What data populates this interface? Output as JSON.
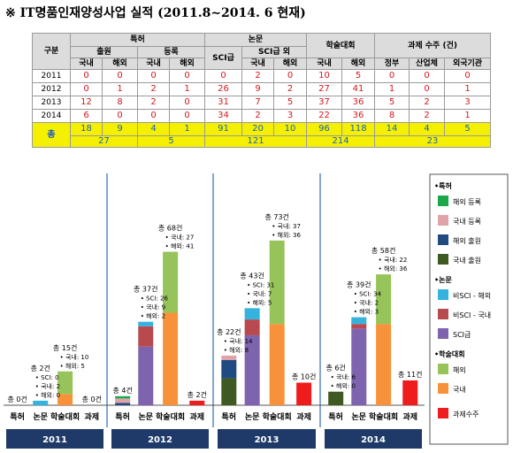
{
  "title": "※ IT명품인재양성사업 실적 (2011.8~2014. 6 현재)",
  "table": {
    "corner": "구분",
    "groups": [
      "특허",
      "논문",
      "학술대회",
      "과제 수주 (건)"
    ],
    "subgroups": [
      "출원",
      "등록",
      "SCI급",
      "SCI급 외"
    ],
    "cols": [
      "국내",
      "해외",
      "국내",
      "해외",
      "SCI급",
      "국내",
      "해외",
      "국내",
      "해외",
      "정부",
      "산업체",
      "외국기관"
    ],
    "rows": [
      {
        "year": "2011",
        "values": [
          "0",
          "0",
          "0",
          "0",
          "0",
          "2",
          "0",
          "10",
          "5",
          "0",
          "0",
          "0"
        ]
      },
      {
        "year": "2012",
        "values": [
          "0",
          "1",
          "2",
          "1",
          "26",
          "9",
          "2",
          "27",
          "41",
          "1",
          "0",
          "1"
        ]
      },
      {
        "year": "2013",
        "values": [
          "12",
          "8",
          "2",
          "0",
          "31",
          "7",
          "5",
          "37",
          "36",
          "5",
          "2",
          "3"
        ]
      },
      {
        "year": "2014",
        "values": [
          "6",
          "0",
          "0",
          "0",
          "34",
          "2",
          "3",
          "22",
          "36",
          "8",
          "2",
          "1"
        ]
      }
    ],
    "total_label": "총",
    "totals": [
      "18",
      "9",
      "4",
      "1",
      "91",
      "20",
      "10",
      "96",
      "118",
      "14",
      "4",
      "5"
    ],
    "group_totals": [
      "27",
      "5",
      "121",
      "214",
      "23"
    ]
  },
  "chart_data": {
    "type": "bar",
    "stacked": true,
    "years": [
      "2011",
      "2012",
      "2013",
      "2014"
    ],
    "categories": [
      "특허",
      "논문",
      "학술대회",
      "과제"
    ],
    "groups": [
      {
        "year": "2011",
        "patent": {
          "total": "총 0건",
          "segments": [
            0,
            0,
            0,
            0
          ]
        },
        "paper": {
          "total": "총 2건",
          "segments": [
            0,
            0,
            2
          ],
          "notes": [
            "• SCI: 0",
            "• 국내: 2",
            "• 해외: 0"
          ]
        },
        "conf": {
          "total": "총 15건",
          "segments": [
            5,
            10
          ],
          "notes": [
            "• 국내: 10",
            "• 해외: 5"
          ]
        },
        "project": {
          "total": "총 0건",
          "value": 0
        }
      },
      {
        "year": "2012",
        "patent": {
          "total": "총 4건",
          "segments": [
            0,
            1,
            2,
            1
          ]
        },
        "paper": {
          "total": "총 37건",
          "segments": [
            26,
            9,
            2
          ],
          "notes": [
            "• SCI: 26",
            "• 국내: 9",
            "• 해외: 2"
          ]
        },
        "conf": {
          "total": "총 68건",
          "segments": [
            41,
            27
          ],
          "notes": [
            "• 국내: 27",
            "• 해외: 41"
          ]
        },
        "project": {
          "total": "총 2건",
          "value": 2
        }
      },
      {
        "year": "2013",
        "patent": {
          "total": "총 22건",
          "segments": [
            12,
            8,
            2,
            0
          ],
          "notes": [
            "• 국내: 14",
            "• 해외: 8"
          ]
        },
        "paper": {
          "total": "총 43건",
          "segments": [
            31,
            7,
            5
          ],
          "notes": [
            "• SCI: 31",
            "• 국내: 7",
            "• 해외: 5"
          ]
        },
        "conf": {
          "total": "총 73건",
          "segments": [
            36,
            37
          ],
          "notes": [
            "• 국내: 37",
            "• 해외: 36"
          ]
        },
        "project": {
          "total": "총 10건",
          "value": 10
        }
      },
      {
        "year": "2014",
        "patent": {
          "total": "총 6건",
          "segments": [
            6,
            0,
            0,
            0
          ],
          "notes": [
            "• 국내: 6",
            "• 해외: 0"
          ]
        },
        "paper": {
          "total": "총 39건",
          "segments": [
            34,
            2,
            3
          ],
          "notes": [
            "• SCI: 34",
            "• 국내: 2",
            "• 해외: 3"
          ]
        },
        "conf": {
          "total": "총 58건",
          "segments": [
            36,
            22
          ],
          "notes": [
            "• 국내: 22",
            "• 해외: 36"
          ]
        },
        "project": {
          "total": "총 11건",
          "value": 11
        }
      }
    ],
    "series_order_note_patent": [
      "국내 출원",
      "해외 출원",
      "국내 등록",
      "해외 등록"
    ],
    "legend": {
      "patent_head": "•특허",
      "patent": [
        {
          "name": "해외 등록",
          "color": "#1aa84b"
        },
        {
          "name": "국내 등록",
          "color": "#e0a4a8"
        },
        {
          "name": "해외 출원",
          "color": "#1f4a82"
        },
        {
          "name": "국내 출원",
          "color": "#3e5a22"
        }
      ],
      "paper_head": "•논문",
      "paper": [
        {
          "name": "비SCI - 해외",
          "color": "#33b3dd"
        },
        {
          "name": "비SCI - 국내",
          "color": "#b84a4f"
        },
        {
          "name": "SCI급",
          "color": "#7e64ae"
        }
      ],
      "conf_head": "•학술대회",
      "conf": [
        {
          "name": "해외",
          "color": "#96c35a"
        },
        {
          "name": "국내",
          "color": "#f7923a"
        }
      ],
      "project": {
        "name": "과제수주",
        "color": "#ee1c1c"
      }
    }
  }
}
